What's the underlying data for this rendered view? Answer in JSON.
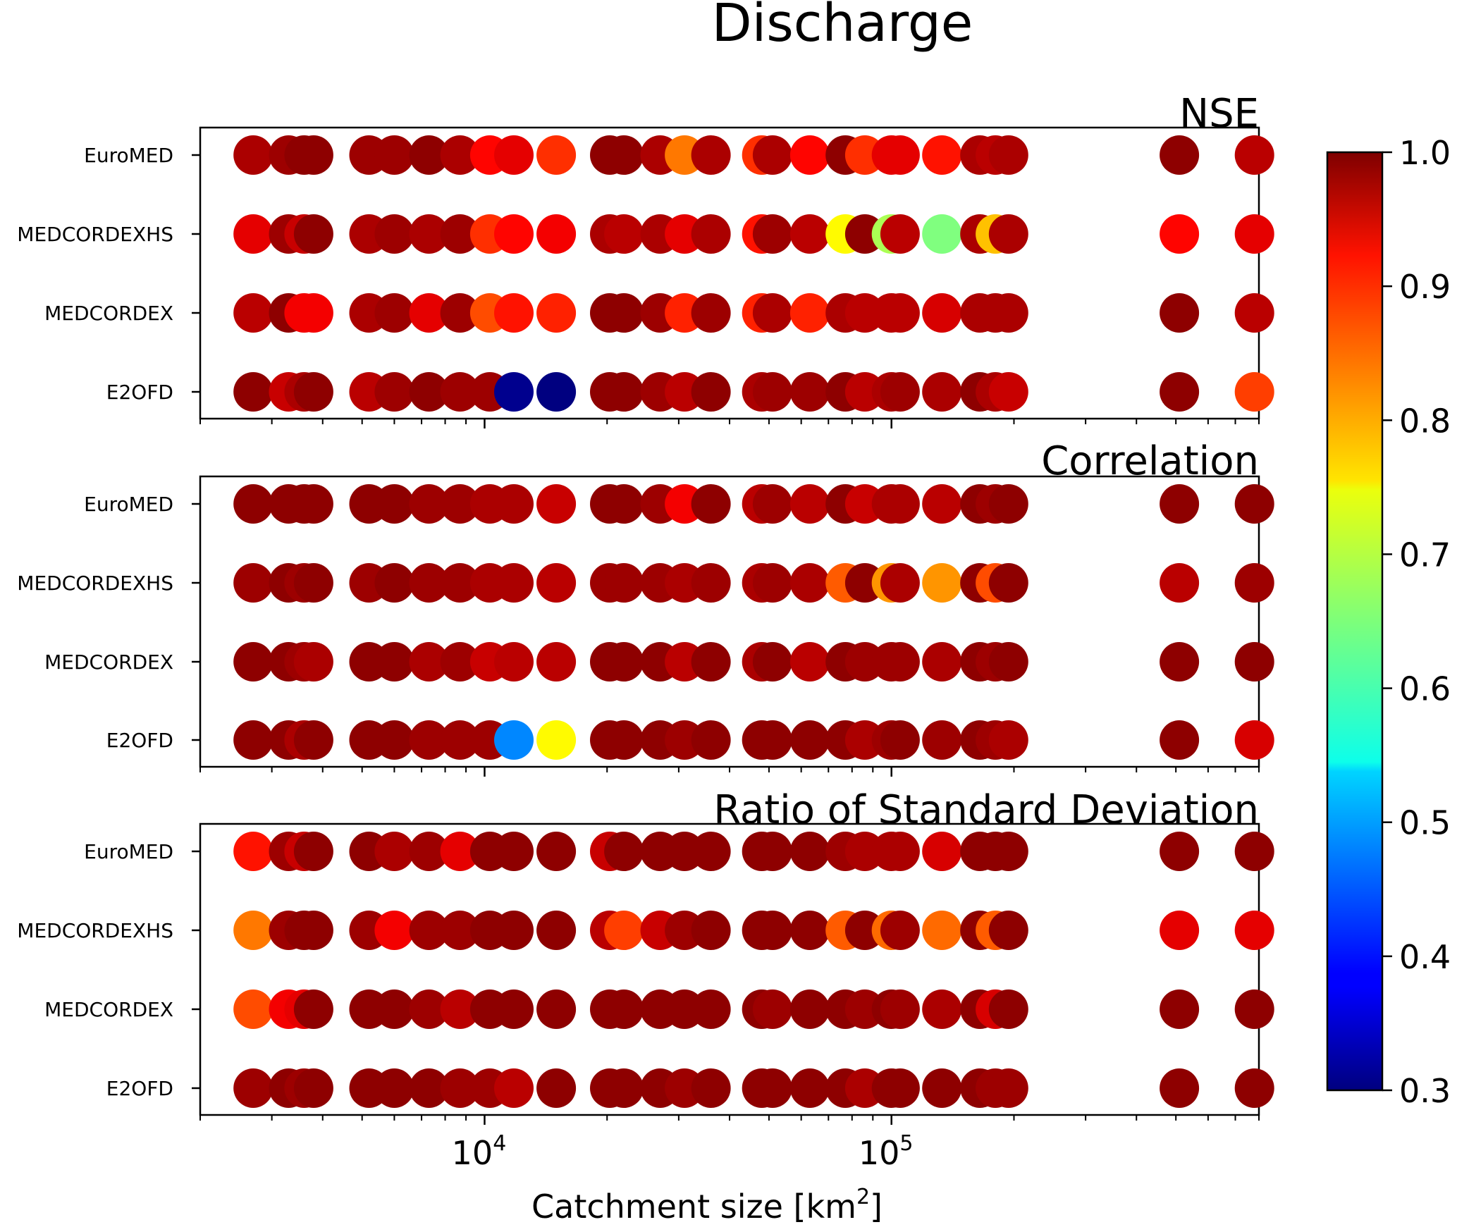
{
  "chart_data": {
    "type": "scatter",
    "title": "Discharge",
    "xlabel": "Catchment size [km",
    "xlabel_sup": "2",
    "xlabel_tail": "]",
    "xscale": "log",
    "xlim": [
      2000,
      800000
    ],
    "x_tick_labels": [
      {
        "value": 10000,
        "base": "10",
        "exp": "4"
      },
      {
        "value": 100000,
        "base": "10",
        "exp": "5"
      }
    ],
    "catchment_sizes": [
      2700,
      3300,
      3600,
      3800,
      5200,
      6000,
      7300,
      8700,
      10300,
      11800,
      15000,
      20300,
      22000,
      27000,
      31000,
      36000,
      48000,
      51000,
      63000,
      77000,
      86000,
      100000,
      105000,
      133000,
      165000,
      180000,
      194000,
      510000,
      780000
    ],
    "rows": [
      "E2OFD",
      "MEDCORDEX",
      "MEDCORDEXHS",
      "EuroMED"
    ],
    "colorbar": {
      "colormap": "jet",
      "range": [
        0.3,
        1.0
      ],
      "tick_labels": [
        "0.3",
        "0.4",
        "0.5",
        "0.6",
        "0.7",
        "0.8",
        "0.9",
        "1.0"
      ]
    },
    "panels": [
      {
        "title": "NSE",
        "series": [
          {
            "name": "E2OFD",
            "values": [
              0.99,
              0.95,
              0.97,
              0.99,
              0.96,
              0.98,
              0.99,
              0.98,
              0.98,
              0.31,
              0.3,
              0.99,
              0.99,
              0.98,
              0.96,
              0.99,
              0.97,
              0.98,
              0.98,
              0.99,
              0.96,
              0.97,
              0.98,
              0.97,
              0.99,
              0.97,
              0.95,
              0.99,
              0.87
            ]
          },
          {
            "name": "MEDCORDEX",
            "values": [
              0.96,
              0.99,
              0.92,
              0.92,
              0.97,
              0.98,
              0.93,
              0.98,
              0.86,
              0.9,
              0.89,
              0.99,
              0.99,
              0.98,
              0.89,
              0.98,
              0.89,
              0.97,
              0.89,
              0.97,
              0.96,
              0.96,
              0.96,
              0.94,
              0.97,
              0.97,
              0.97,
              0.99,
              0.96
            ]
          },
          {
            "name": "MEDCORDEXHS",
            "values": [
              0.93,
              0.98,
              0.95,
              0.99,
              0.97,
              0.98,
              0.97,
              0.98,
              0.88,
              0.91,
              0.92,
              0.97,
              0.96,
              0.97,
              0.93,
              0.97,
              0.9,
              0.98,
              0.96,
              0.74,
              0.99,
              0.68,
              0.96,
              0.65,
              0.97,
              0.78,
              0.97,
              0.91,
              0.93
            ]
          },
          {
            "name": "EuroMED",
            "values": [
              0.97,
              0.98,
              0.99,
              0.99,
              0.98,
              0.98,
              0.99,
              0.97,
              0.91,
              0.93,
              0.88,
              0.99,
              0.99,
              0.97,
              0.83,
              0.97,
              0.88,
              0.97,
              0.91,
              0.99,
              0.88,
              0.93,
              0.93,
              0.9,
              0.97,
              0.96,
              0.97,
              0.99,
              0.96
            ]
          }
        ]
      },
      {
        "title": "Correlation",
        "series": [
          {
            "name": "E2OFD",
            "values": [
              0.99,
              0.99,
              0.97,
              0.99,
              0.99,
              0.99,
              0.98,
              0.98,
              0.98,
              0.48,
              0.74,
              0.99,
              0.99,
              0.99,
              0.98,
              0.99,
              0.99,
              0.99,
              0.99,
              0.99,
              0.97,
              0.98,
              0.99,
              0.98,
              0.99,
              0.98,
              0.97,
              0.99,
              0.94
            ]
          },
          {
            "name": "MEDCORDEX",
            "values": [
              0.99,
              0.99,
              0.98,
              0.97,
              0.99,
              0.99,
              0.97,
              0.98,
              0.95,
              0.96,
              0.96,
              0.99,
              0.99,
              0.99,
              0.96,
              0.99,
              0.97,
              0.99,
              0.96,
              0.99,
              0.98,
              0.98,
              0.98,
              0.97,
              0.99,
              0.98,
              0.99,
              0.99,
              0.99
            ]
          },
          {
            "name": "MEDCORDEXHS",
            "values": [
              0.98,
              0.99,
              0.98,
              0.99,
              0.98,
              0.99,
              0.98,
              0.98,
              0.97,
              0.97,
              0.96,
              0.98,
              0.98,
              0.98,
              0.97,
              0.98,
              0.97,
              0.98,
              0.97,
              0.85,
              0.99,
              0.81,
              0.97,
              0.81,
              0.99,
              0.86,
              0.99,
              0.96,
              0.98
            ]
          },
          {
            "name": "EuroMED",
            "values": [
              0.99,
              0.99,
              0.99,
              0.99,
              0.99,
              0.99,
              0.98,
              0.98,
              0.97,
              0.97,
              0.95,
              0.99,
              0.99,
              0.98,
              0.92,
              0.99,
              0.96,
              0.98,
              0.96,
              0.99,
              0.95,
              0.97,
              0.97,
              0.96,
              0.99,
              0.98,
              0.99,
              0.99,
              0.99
            ]
          }
        ]
      },
      {
        "title": "Ratio of Standard Deviation",
        "series": [
          {
            "name": "E2OFD",
            "values": [
              0.98,
              0.99,
              0.98,
              0.99,
              0.99,
              0.99,
              0.99,
              0.98,
              0.98,
              0.96,
              0.99,
              0.99,
              0.99,
              0.99,
              0.98,
              0.99,
              0.99,
              0.99,
              0.99,
              0.99,
              0.97,
              0.99,
              0.99,
              0.99,
              0.99,
              0.98,
              0.98,
              0.99,
              0.99
            ]
          },
          {
            "name": "MEDCORDEX",
            "values": [
              0.86,
              0.92,
              0.93,
              0.99,
              0.99,
              0.99,
              0.98,
              0.96,
              0.99,
              0.99,
              0.99,
              0.99,
              0.99,
              0.99,
              0.99,
              0.99,
              0.99,
              0.98,
              0.99,
              0.99,
              0.98,
              0.99,
              0.98,
              0.97,
              0.99,
              0.94,
              0.99,
              0.99,
              0.99
            ]
          },
          {
            "name": "MEDCORDEXHS",
            "values": [
              0.83,
              0.98,
              0.99,
              0.99,
              0.98,
              0.92,
              0.98,
              0.98,
              0.99,
              0.99,
              0.99,
              0.96,
              0.87,
              0.95,
              0.98,
              0.99,
              0.99,
              0.99,
              0.99,
              0.85,
              0.99,
              0.84,
              0.98,
              0.84,
              0.99,
              0.85,
              0.99,
              0.93,
              0.93
            ]
          },
          {
            "name": "EuroMED",
            "values": [
              0.9,
              0.98,
              0.95,
              0.99,
              0.99,
              0.97,
              0.98,
              0.93,
              0.99,
              0.99,
              0.99,
              0.95,
              0.99,
              0.99,
              0.99,
              0.99,
              0.99,
              0.99,
              0.99,
              0.98,
              0.97,
              0.97,
              0.97,
              0.94,
              0.99,
              0.99,
              0.99,
              0.99,
              0.99
            ]
          }
        ]
      }
    ]
  }
}
